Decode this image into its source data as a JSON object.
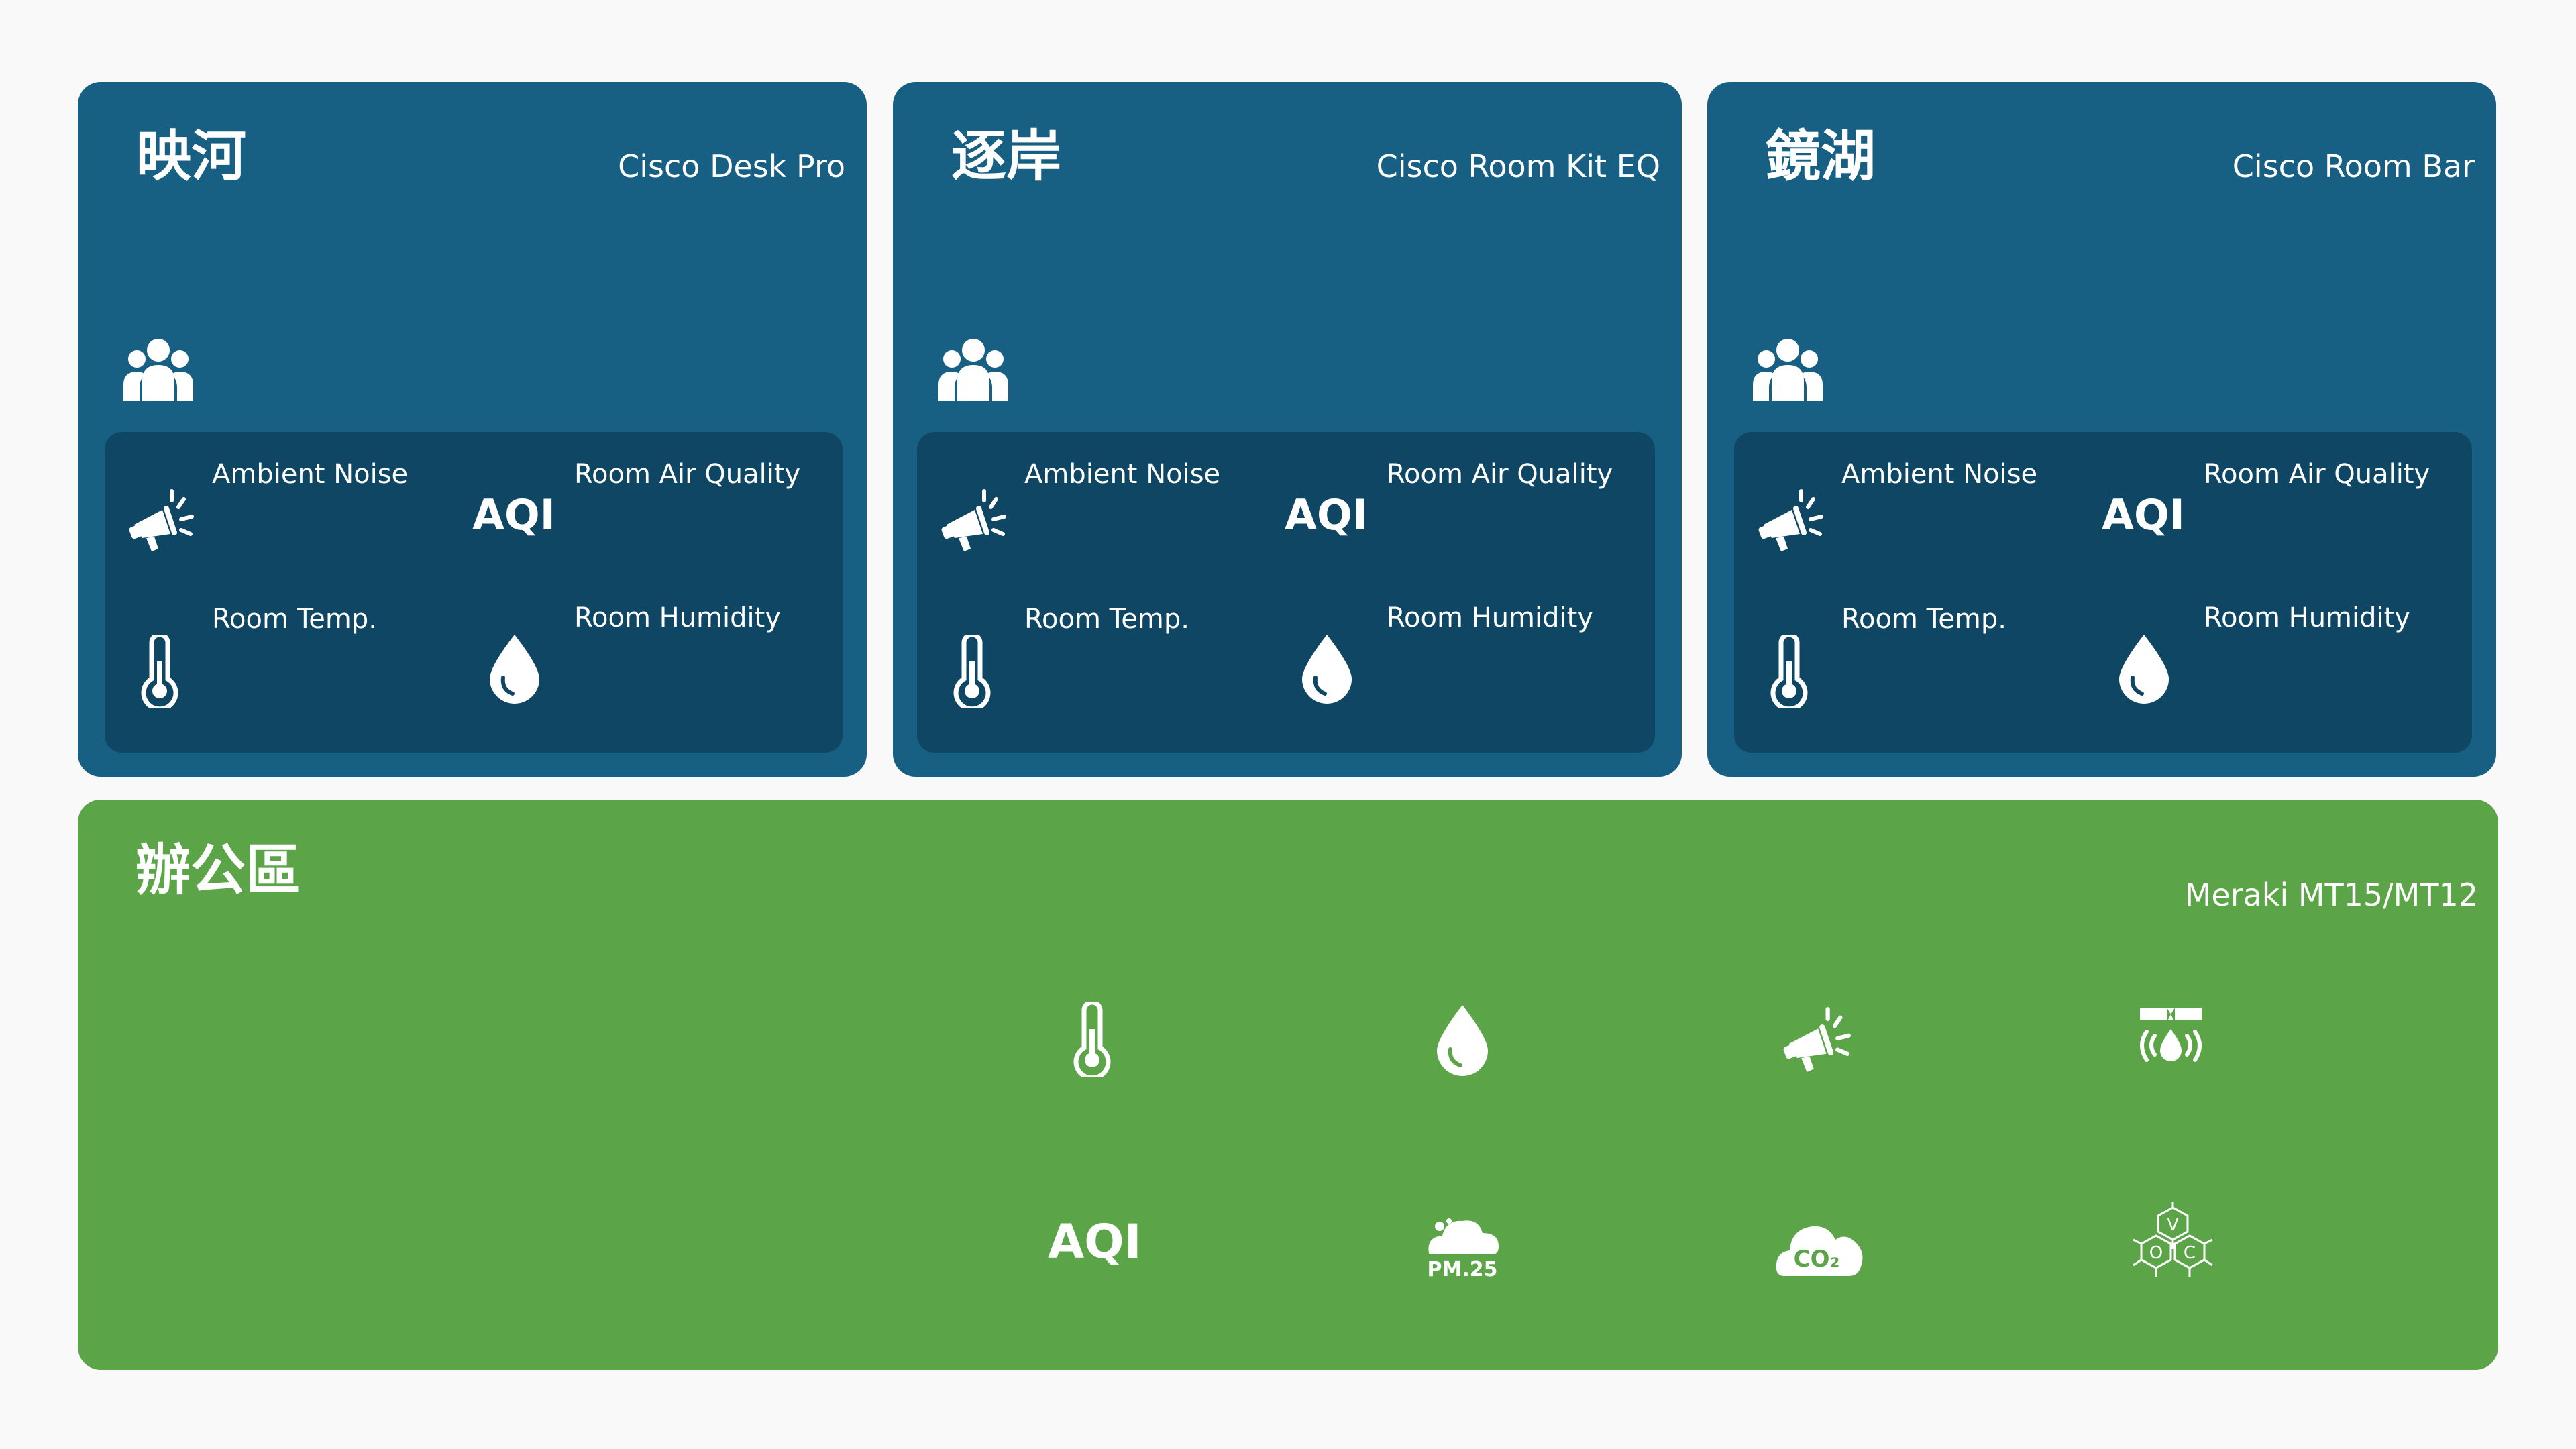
{
  "rooms": [
    {
      "name": "映河",
      "device": "Cisco Desk Pro",
      "labels": {
        "noise": "Ambient Noise",
        "air_quality": "Room Air Quality",
        "aqi": "AQI",
        "temp": "Room Temp.",
        "humidity": "Room Humidity"
      },
      "icons": [
        "people-icon",
        "megaphone-icon",
        "thermometer-icon",
        "water-drop-icon"
      ]
    },
    {
      "name": "逐岸",
      "device": "Cisco Room Kit EQ",
      "labels": {
        "noise": "Ambient Noise",
        "air_quality": "Room Air Quality",
        "aqi": "AQI",
        "temp": "Room Temp.",
        "humidity": "Room Humidity"
      },
      "icons": [
        "people-icon",
        "megaphone-icon",
        "thermometer-icon",
        "water-drop-icon"
      ]
    },
    {
      "name": "鏡湖",
      "device": "Cisco Room Bar",
      "labels": {
        "noise": "Ambient Noise",
        "air_quality": "Room Air Quality",
        "aqi": "AQI",
        "temp": "Room Temp.",
        "humidity": "Room Humidity"
      },
      "icons": [
        "people-icon",
        "megaphone-icon",
        "thermometer-icon",
        "water-drop-icon"
      ]
    }
  ],
  "office": {
    "name": "辦公區",
    "device": "Meraki MT15/MT12",
    "aqi": "AQI",
    "pm_label": "PM.25",
    "co2_label": "CO₂",
    "voc_letters": [
      "V",
      "O",
      "C"
    ],
    "icons": [
      "thermometer-icon",
      "water-drop-icon",
      "megaphone-icon",
      "water-leak-icon",
      "aqi-text",
      "pm25-cloud-icon",
      "co2-cloud-icon",
      "voc-molecule-icon"
    ]
  },
  "colors": {
    "background": "#f9f9f9",
    "room_card": "#176083",
    "sensor_panel": "#0f4663",
    "office_card": "#5ba548",
    "text": "#ffffff"
  }
}
